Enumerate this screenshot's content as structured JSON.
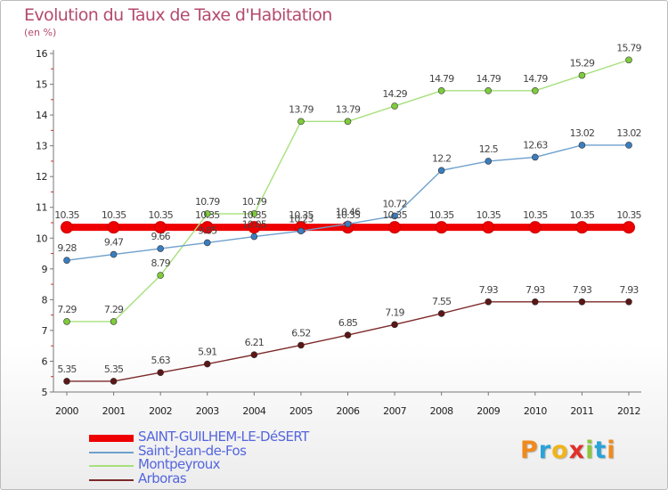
{
  "title": "Evolution du Taux de Taxe d'Habitation",
  "subtitle": "(en %)",
  "logo": {
    "text": "Proxiti",
    "colors": [
      "#f08a1c",
      "#2aa3d8",
      "#f0b41c",
      "#e0302a",
      "#8cc63f",
      "#2aa3d8",
      "#f08a1c"
    ]
  },
  "chart_data": {
    "type": "line",
    "x": [
      "2000",
      "2001",
      "2002",
      "2003",
      "2004",
      "2005",
      "2006",
      "2007",
      "2008",
      "2009",
      "2010",
      "2011",
      "2012"
    ],
    "ylim": [
      5,
      16
    ],
    "yticks": [
      "5",
      "6",
      "7",
      "8",
      "9",
      "10",
      "11",
      "12",
      "13",
      "14",
      "15",
      "16"
    ],
    "grid": false,
    "legend_position": "bottom-left",
    "series": [
      {
        "name": "SAINT-GUILHEM-LE-DéSERT",
        "color": "#ee0000",
        "width": 8,
        "values": [
          10.35,
          10.35,
          10.35,
          10.35,
          10.35,
          10.35,
          10.35,
          10.35,
          10.35,
          10.35,
          10.35,
          10.35,
          10.35
        ],
        "labels": [
          "10.35",
          "10.35",
          "10.35",
          "10.35",
          "10.35",
          "10.35",
          "10.35",
          "10.35",
          "10.35",
          "10.35",
          "10.35",
          "10.35",
          "10.35"
        ]
      },
      {
        "name": "Saint-Jean-de-Fos",
        "color": "#6ea0cc",
        "width": 1.4,
        "marker": "#3a7dc0",
        "values": [
          9.28,
          9.47,
          9.66,
          9.85,
          10.05,
          10.23,
          10.46,
          10.72,
          12.2,
          12.5,
          12.63,
          13.02,
          13.02
        ],
        "labels": [
          "9.28",
          "9.47",
          "9.66",
          "9.85",
          "10.05",
          "10.23",
          "10.46",
          "10.72",
          "12.2",
          "12.5",
          "12.63",
          "13.02",
          "13.02"
        ]
      },
      {
        "name": "Montpeyroux",
        "color": "#a6e07c",
        "width": 1.4,
        "marker": "#7ecb3c",
        "values": [
          7.29,
          7.29,
          8.79,
          10.79,
          10.79,
          13.79,
          13.79,
          14.29,
          14.79,
          14.79,
          14.79,
          15.29,
          15.79
        ],
        "labels": [
          "7.29",
          "7.29",
          "8.79",
          "10.79",
          "10.79",
          "13.79",
          "13.79",
          "14.29",
          "14.79",
          "14.79",
          "14.79",
          "15.29",
          "15.79"
        ]
      },
      {
        "name": "Arboras",
        "color": "#7d2a2a",
        "width": 1.4,
        "marker": "#5c1616",
        "values": [
          5.35,
          5.35,
          5.63,
          5.91,
          6.21,
          6.52,
          6.85,
          7.19,
          7.55,
          7.93,
          7.93,
          7.93,
          7.93
        ],
        "labels": [
          "5.35",
          "5.35",
          "5.63",
          "5.91",
          "6.21",
          "6.52",
          "6.85",
          "7.19",
          "7.55",
          "7.93",
          "7.93",
          "7.93",
          "7.93"
        ]
      }
    ]
  }
}
